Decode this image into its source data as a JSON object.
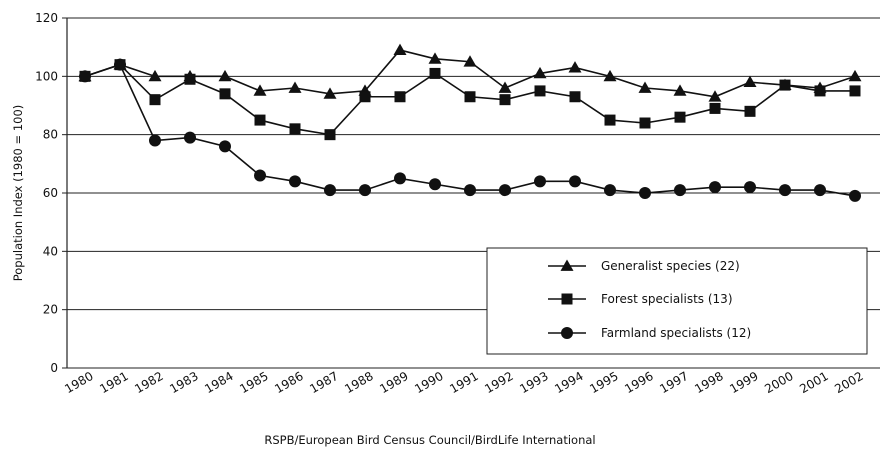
{
  "chart_data": {
    "type": "line",
    "ylabel": "Population Index (1980 = 100)",
    "caption": "RSPB/European Bird Census Council/BirdLife International",
    "x": [
      "1980",
      "1981",
      "1982",
      "1983",
      "1984",
      "1985",
      "1986",
      "1987",
      "1988",
      "1989",
      "1990",
      "1991",
      "1992",
      "1993",
      "1994",
      "1995",
      "1996",
      "1997",
      "1998",
      "1999",
      "2000",
      "2001",
      "2002"
    ],
    "ylim": [
      0,
      120
    ],
    "yticks": [
      0,
      20,
      40,
      60,
      80,
      100,
      120
    ],
    "grid": "horizontal",
    "legend_position": "bottom-right",
    "series": [
      {
        "name": "Generalist species (22)",
        "marker": "triangle",
        "values": [
          100,
          104,
          100,
          100,
          100,
          95,
          96,
          94,
          95,
          109,
          106,
          105,
          96,
          101,
          103,
          100,
          96,
          95,
          93,
          98,
          97,
          96,
          100
        ]
      },
      {
        "name": "Forest specialists (13)",
        "marker": "square",
        "values": [
          100,
          104,
          92,
          99,
          94,
          85,
          82,
          80,
          93,
          93,
          101,
          93,
          92,
          95,
          93,
          85,
          84,
          86,
          89,
          88,
          97,
          95,
          95
        ]
      },
      {
        "name": "Farmland specialists (12)",
        "marker": "circle",
        "values": [
          100,
          104,
          78,
          79,
          76,
          66,
          64,
          61,
          61,
          65,
          63,
          61,
          61,
          64,
          64,
          61,
          60,
          61,
          62,
          62,
          61,
          61,
          59
        ]
      }
    ]
  }
}
